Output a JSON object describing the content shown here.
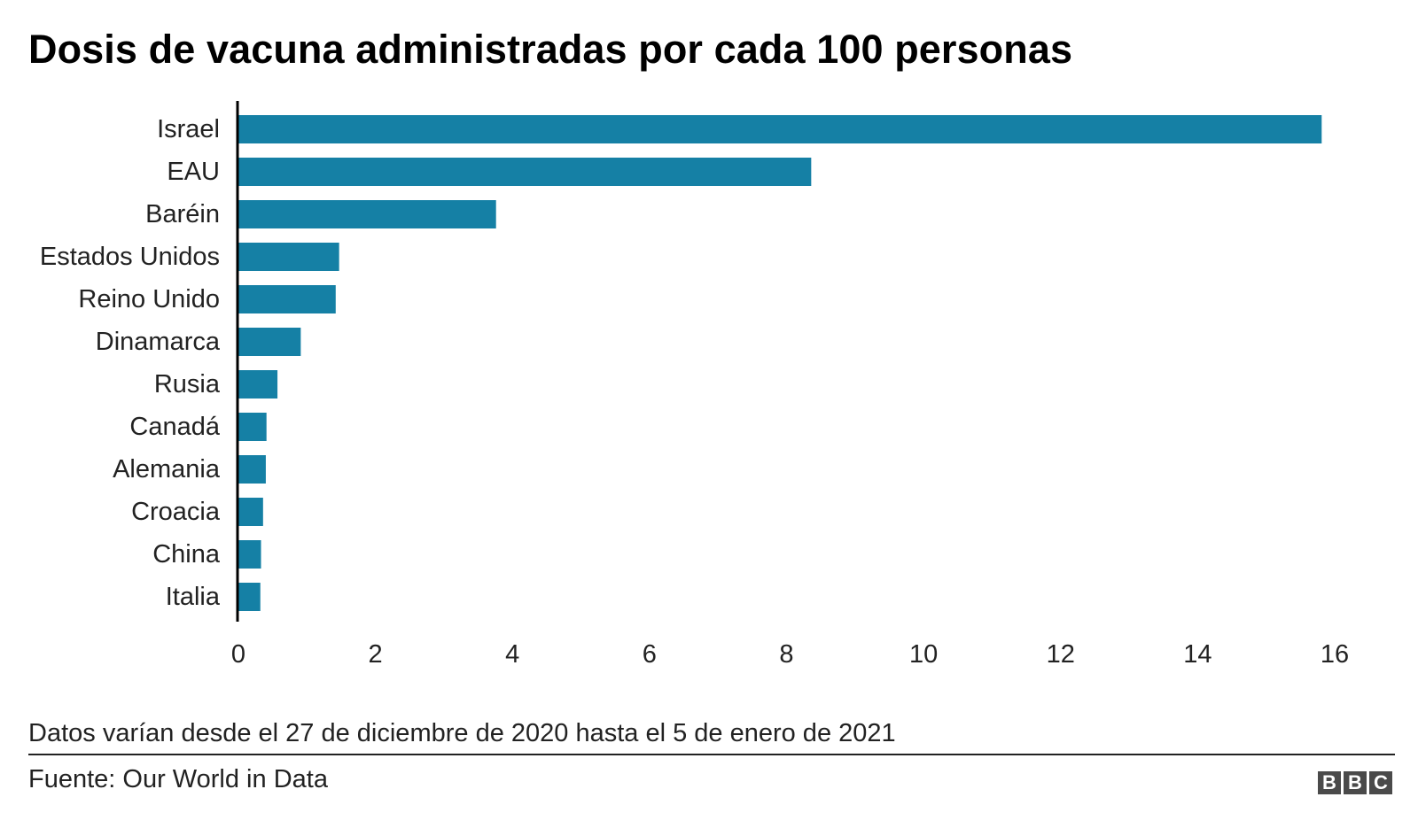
{
  "chart_data": {
    "type": "bar",
    "orientation": "horizontal",
    "title": "Dosis de vacuna administradas por cada 100 personas",
    "categories": [
      "Israel",
      "EAU",
      "Baréin",
      "Estados Unidos",
      "Reino Unido",
      "Dinamarca",
      "Rusia",
      "Canadá",
      "Alemania",
      "Croacia",
      "China",
      "Italia"
    ],
    "values": [
      15.81,
      8.36,
      3.76,
      1.47,
      1.42,
      0.91,
      0.57,
      0.41,
      0.4,
      0.36,
      0.33,
      0.32
    ],
    "xlim": [
      0,
      16
    ],
    "xticks": [
      0,
      2,
      4,
      6,
      8,
      10,
      12,
      14,
      16
    ],
    "grid": false,
    "legend": "none",
    "bar_color": "#1580a5",
    "note": "Datos varían desde el 27 de diciembre de 2020 hasta el 5 de enero de 2021",
    "source": "Fuente: Our World in Data"
  },
  "branding": {
    "logo_letters": [
      "B",
      "B",
      "C"
    ],
    "logo_color": "#4a4a4a"
  }
}
